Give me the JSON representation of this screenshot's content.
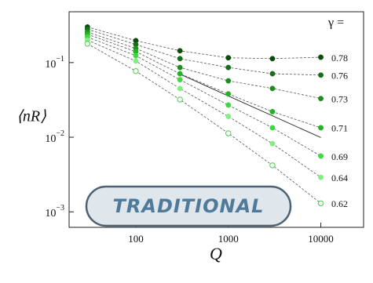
{
  "chart_data": {
    "type": "scatter",
    "xlabel": "Q",
    "ylabel": "⟨nR⟩",
    "legend_title": "γ =",
    "log_x": true,
    "log_y": true,
    "xlim": [
      19,
      29000
    ],
    "ylim": [
      0.00062,
      0.48
    ],
    "xticks": [
      100,
      1000,
      10000
    ],
    "yticks": [
      {
        "value": 0.1,
        "label": "10−1"
      },
      {
        "value": 0.01,
        "label": "10−2"
      },
      {
        "value": 0.001,
        "label": "10−3"
      }
    ],
    "x": [
      30,
      100,
      300,
      1000,
      3000,
      10000
    ],
    "series": [
      {
        "name": "0.78",
        "color": "#0b4d0b",
        "values": [
          0.3,
          0.197,
          0.144,
          0.116,
          0.113,
          0.118
        ]
      },
      {
        "name": "0.76",
        "color": "#176e17",
        "values": [
          0.28,
          0.175,
          0.113,
          0.086,
          0.071,
          0.068
        ]
      },
      {
        "name": "0.73",
        "color": "#1e8f1e",
        "values": [
          0.257,
          0.155,
          0.086,
          0.057,
          0.045,
          0.033
        ]
      },
      {
        "name": "0.71",
        "color": "#22b322",
        "values": [
          0.24,
          0.14,
          0.071,
          0.038,
          0.022,
          0.0134
        ]
      },
      {
        "name": "0.69",
        "color": "#3fd83f",
        "values": [
          0.22,
          0.124,
          0.059,
          0.027,
          0.0134,
          0.0056
        ]
      },
      {
        "name": "0.64",
        "color": "#80ef80",
        "values": [
          0.2,
          0.105,
          0.045,
          0.019,
          0.0082,
          0.0029
        ]
      },
      {
        "name": "0.62",
        "color": "#4cc94c",
        "open": true,
        "values": [
          0.179,
          0.077,
          0.032,
          0.0113,
          0.0042,
          0.0013
        ]
      }
    ],
    "reference_line": {
      "color": "#333333",
      "x": [
        300,
        10000
      ],
      "values": [
        0.07,
        0.0099
      ]
    },
    "badge": "TRADITIONAL"
  }
}
